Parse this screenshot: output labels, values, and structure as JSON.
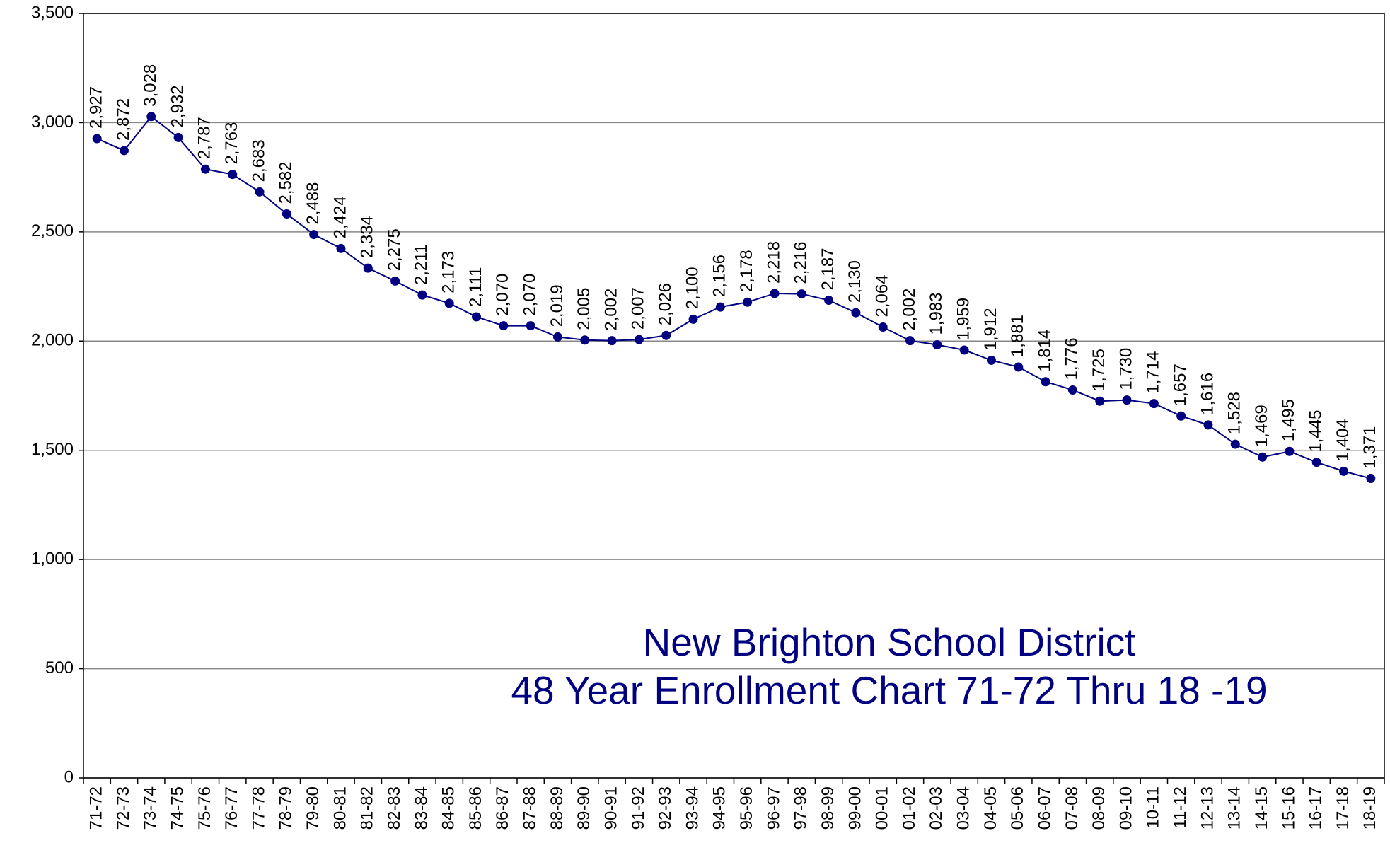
{
  "chart_data": {
    "type": "line",
    "title": "New Brighton School District",
    "subtitle": "48 Year Enrollment Chart 71-72 Thru 18 -19",
    "categories": [
      "71-72",
      "72-73",
      "73-74",
      "74-75",
      "75-76",
      "76-77",
      "77-78",
      "78-79",
      "79-80",
      "80-81",
      "81-82",
      "82-83",
      "83-84",
      "84-85",
      "85-86",
      "86-87",
      "87-88",
      "88-89",
      "89-90",
      "90-91",
      "91-92",
      "92-93",
      "93-94",
      "94-95",
      "95-96",
      "96-97",
      "97-98",
      "98-99",
      "99-00",
      "00-01",
      "01-02",
      "02-03",
      "03-04",
      "04-05",
      "05-06",
      "06-07",
      "07-08",
      "08-09",
      "09-10",
      "10-11",
      "11-12",
      "12-13",
      "13-14",
      "14-15",
      "15-16",
      "16-17",
      "17-18",
      "18-19"
    ],
    "series": [
      {
        "color": "#000080",
        "values": [
          2927,
          2872,
          3028,
          2932,
          2787,
          2763,
          2683,
          2582,
          2488,
          2424,
          2334,
          2275,
          2211,
          2173,
          2111,
          2070,
          2070,
          2019,
          2005,
          2002,
          2007,
          2026,
          2100,
          2156,
          2178,
          2218,
          2216,
          2187,
          2130,
          2064,
          2002,
          1983,
          1959,
          1912,
          1881,
          1814,
          1776,
          1725,
          1730,
          1714,
          1657,
          1616,
          1528,
          1469,
          1495,
          1445,
          1404,
          1371
        ],
        "value_labels": [
          "2,927",
          "2,872",
          "3,028",
          "2,932",
          "2,787",
          "2,763",
          "2,683",
          "2,582",
          "2,488",
          "2,424",
          "2,334",
          "2,275",
          "2,211",
          "2,173",
          "2,111",
          "2,070",
          "2,070",
          "2,019",
          "2,005",
          "2,002",
          "2,007",
          "2,026",
          "2,100",
          "2,156",
          "2,178",
          "2,218",
          "2,216",
          "2,187",
          "2,130",
          "2,064",
          "2,002",
          "1,983",
          "1,959",
          "1,912",
          "1,881",
          "1,814",
          "1,776",
          "1,725",
          "1,730",
          "1,714",
          "1,657",
          "1,616",
          "1,528",
          "1,469",
          "1,495",
          "1,445",
          "1,404",
          "1,371"
        ]
      }
    ],
    "ylim": [
      0,
      3500
    ],
    "yticks": [
      0,
      500,
      {
        "value": 1000,
        "label": "1,000"
      },
      {
        "value": 1500,
        "label": "1,500"
      },
      {
        "value": 2000,
        "label": "2,000"
      },
      {
        "value": 2500,
        "label": "2,500"
      },
      {
        "value": 3000,
        "label": "3,000"
      },
      {
        "value": 3500,
        "label": "3,500"
      }
    ],
    "grid": true
  }
}
